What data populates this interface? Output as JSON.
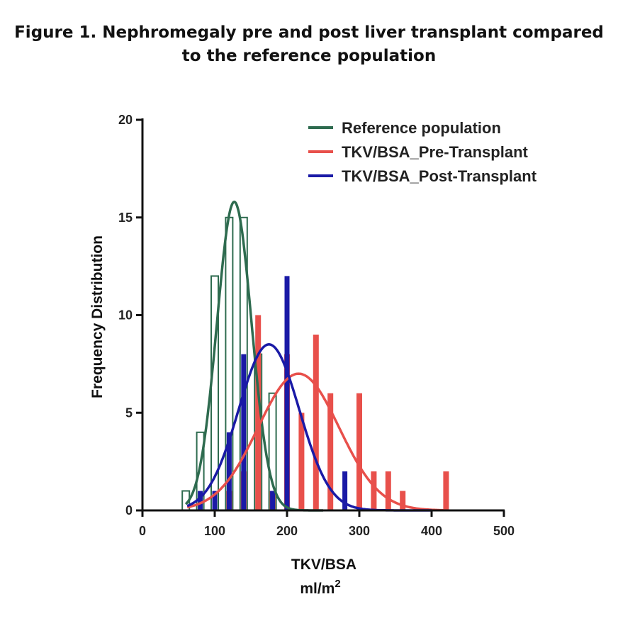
{
  "figure": {
    "title_line1": "Figure 1. Nephromegaly pre and post liver transplant compared",
    "title_line2": "to the reference population"
  },
  "chart_data": {
    "type": "bar",
    "xlabel": "TKV/BSA",
    "xlabel_units": "ml/m",
    "xlabel_units_superscript": "2",
    "ylabel": "Frequency Distribution",
    "xlim": [
      0,
      500
    ],
    "ylim": [
      0,
      20
    ],
    "xticks": [
      0,
      100,
      200,
      300,
      400,
      500
    ],
    "yticks": [
      0,
      5,
      10,
      15,
      20
    ],
    "grid": false,
    "legend_position": "top-right",
    "series": [
      {
        "name": "Reference population",
        "color": "#2e6b4f",
        "style": "outline",
        "x": [
          60,
          80,
          100,
          120,
          140,
          160,
          180
        ],
        "values": [
          1,
          4,
          12,
          15,
          15,
          8,
          6
        ],
        "curve": {
          "mean": 127,
          "sd": 24,
          "peak": 15.8
        }
      },
      {
        "name": "TKV/BSA_Pre-Transplant",
        "color": "#e8504b",
        "style": "filled",
        "x": [
          60,
          80,
          100,
          120,
          140,
          160,
          180,
          200,
          220,
          240,
          260,
          280,
          300,
          320,
          340,
          360,
          380,
          400,
          420
        ],
        "values": [
          0,
          0,
          0,
          1,
          2,
          10,
          1,
          8,
          5,
          9,
          6,
          0,
          6,
          2,
          2,
          1,
          0,
          0,
          2
        ],
        "curve": {
          "mean": 216,
          "sd": 56,
          "peak": 7
        }
      },
      {
        "name": "TKV/BSA_Post-Transplant",
        "color": "#1a1aa6",
        "style": "filled",
        "x": [
          60,
          80,
          100,
          120,
          140,
          160,
          180,
          200,
          220,
          240,
          260,
          280,
          300
        ],
        "values": [
          0,
          1,
          1,
          4,
          8,
          0,
          1,
          12,
          0,
          0,
          0,
          2,
          0
        ],
        "curve": {
          "mean": 175,
          "sd": 42,
          "peak": 8.5
        }
      }
    ]
  }
}
